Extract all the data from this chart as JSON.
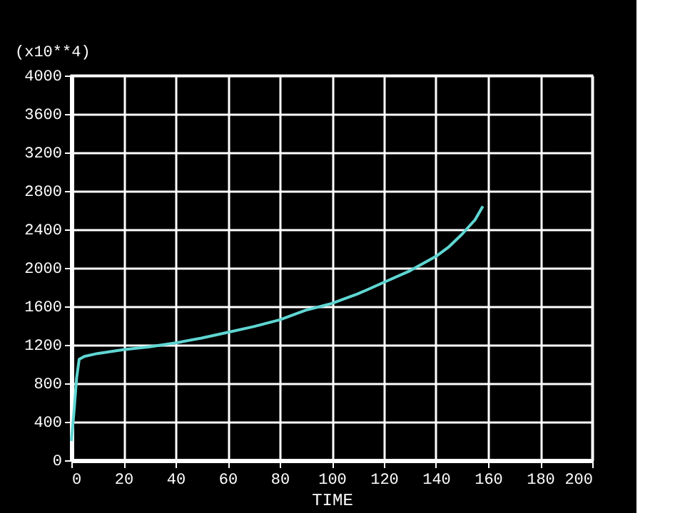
{
  "chart_data": {
    "type": "line",
    "xlabel": "TIME",
    "ylabel": "(x10**4)",
    "x": [
      0,
      1,
      2,
      3,
      5,
      10,
      15,
      20,
      30,
      40,
      50,
      60,
      70,
      80,
      90,
      100,
      110,
      120,
      130,
      140,
      145,
      150,
      155,
      158
    ],
    "series": [
      {
        "color": "#5fd6d2",
        "values": [
          200,
          500,
          850,
          1050,
          1080,
          1110,
          1130,
          1150,
          1180,
          1220,
          1270,
          1330,
          1390,
          1460,
          1560,
          1630,
          1730,
          1850,
          1970,
          2120,
          2220,
          2350,
          2500,
          2640
        ]
      }
    ],
    "xlim": [
      0,
      200
    ],
    "xticks": [
      0,
      20,
      40,
      60,
      80,
      100,
      120,
      140,
      160,
      180,
      200
    ],
    "ylim": [
      0,
      4000
    ],
    "yticks": [
      0,
      400,
      800,
      1200,
      1600,
      2000,
      2400,
      2800,
      3200,
      3600,
      4000
    ],
    "grid": true,
    "marker": "none",
    "line_style": "solid"
  }
}
